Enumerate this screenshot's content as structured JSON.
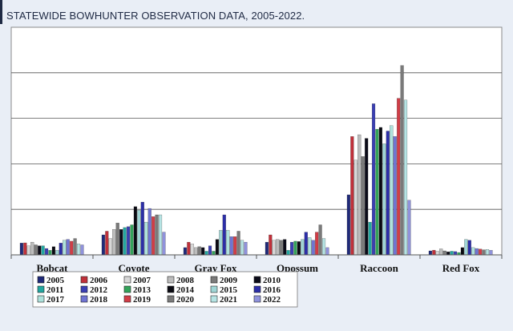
{
  "page": {
    "title": "STATEWIDE BOWHUNTER OBSERVATION DATA, 2005-2022.",
    "background": "#e9eef6",
    "plot_background": "#ffffff"
  },
  "chart_data": {
    "type": "bar",
    "title": "STATEWIDE BOWHUNTER OBSERVATION DATA, 2005-2022.",
    "xlabel": "",
    "ylabel": "",
    "ylim": [
      0,
      125
    ],
    "grid": true,
    "legend_position": "bottom-left",
    "categories": [
      "Bobcat",
      "Coyote",
      "Gray Fox",
      "Opossum",
      "Raccoon",
      "Red Fox"
    ],
    "series": [
      {
        "name": "2005",
        "color": "#1f2a7a",
        "values": [
          6.5,
          11,
          4,
          7,
          33,
          2.2
        ]
      },
      {
        "name": "2006",
        "color": "#c0303a",
        "values": [
          6.6,
          13,
          7,
          11,
          65,
          2.6
        ]
      },
      {
        "name": "2007",
        "color": "#d7d7d7",
        "values": [
          5,
          9,
          6,
          8,
          52,
          2
        ]
      },
      {
        "name": "2008",
        "color": "#bcbcbc",
        "values": [
          7,
          14,
          4,
          8.5,
          66,
          3.3
        ]
      },
      {
        "name": "2009",
        "color": "#7a7a7a",
        "values": [
          5.5,
          17.5,
          4.5,
          8,
          54,
          2.2
        ]
      },
      {
        "name": "2010",
        "color": "#0b0b18",
        "values": [
          5,
          14,
          4,
          8.5,
          64,
          1.7
        ]
      },
      {
        "name": "2011",
        "color": "#22a7a0",
        "values": [
          5,
          15,
          2,
          2.5,
          18,
          2
        ]
      },
      {
        "name": "2012",
        "color": "#3a3fb4",
        "values": [
          3.5,
          15.5,
          5,
          7,
          83,
          1.8
        ]
      },
      {
        "name": "2013",
        "color": "#33a35a",
        "values": [
          2.5,
          16.5,
          2,
          7.5,
          69,
          1.3
        ]
      },
      {
        "name": "2014",
        "color": "#0a0a12",
        "values": [
          4.5,
          26.5,
          8.5,
          7.3,
          70,
          4
        ]
      },
      {
        "name": "2015",
        "color": "#9fd5d5",
        "values": [
          2.5,
          24.5,
          13.5,
          8.5,
          61,
          8.5
        ]
      },
      {
        "name": "2016",
        "color": "#2c2ea8",
        "values": [
          6.5,
          29,
          22,
          12.5,
          68,
          8
        ]
      },
      {
        "name": "2017",
        "color": "#aee2dc",
        "values": [
          8,
          18,
          13.5,
          9.5,
          71,
          4
        ]
      },
      {
        "name": "2018",
        "color": "#6f74d2",
        "values": [
          8.5,
          25.5,
          10,
          8,
          65,
          3.5
        ]
      },
      {
        "name": "2019",
        "color": "#d23d47",
        "values": [
          7.5,
          21,
          10,
          12.5,
          86,
          3.2
        ]
      },
      {
        "name": "2020",
        "color": "#7a7a7a",
        "values": [
          9,
          22,
          13,
          16.5,
          104,
          2.8
        ]
      },
      {
        "name": "2021",
        "color": "#b6e4e4",
        "values": [
          6,
          22,
          8,
          9,
          85,
          3
        ]
      },
      {
        "name": "2022",
        "color": "#8f92dc",
        "values": [
          5.5,
          12.5,
          7,
          4,
          30,
          2.5
        ]
      }
    ]
  }
}
